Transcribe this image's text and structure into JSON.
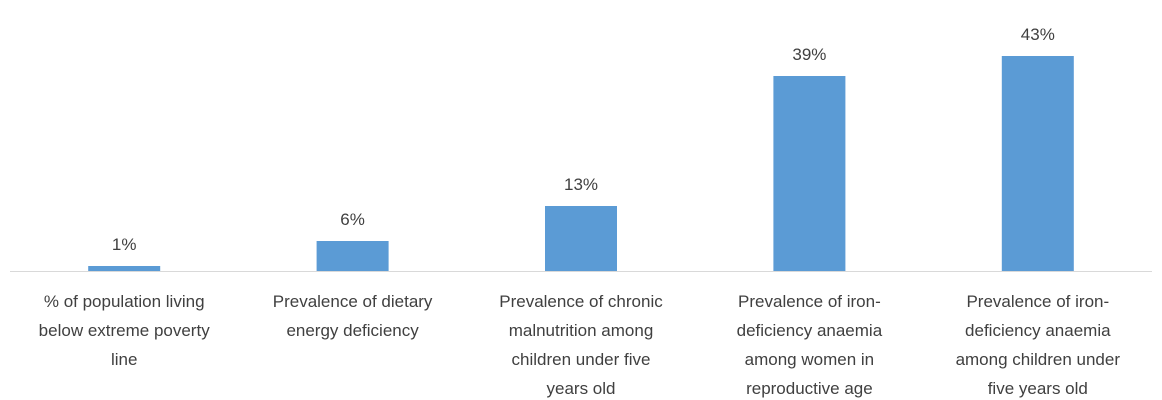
{
  "chart_data": {
    "type": "bar",
    "categories": [
      [
        "% of population living",
        "below extreme poverty",
        "line"
      ],
      [
        "Prevalence of dietary",
        "energy deficiency"
      ],
      [
        "Prevalence of chronic",
        "malnutrition among",
        "children under five",
        "years old"
      ],
      [
        "Prevalence of iron-",
        "deficiency anaemia",
        "among women in",
        "reproductive age"
      ],
      [
        "Prevalence of iron-",
        "deficiency anaemia",
        "among children under",
        "five years old"
      ]
    ],
    "values": [
      1,
      6,
      13,
      39,
      43
    ],
    "data_labels": [
      "1%",
      "6%",
      "13%",
      "39%",
      "43%"
    ],
    "unit": "%",
    "ylim": [
      0,
      45
    ],
    "grid": false,
    "legend": "none",
    "bar_color": "#5B9BD5",
    "axis_color": "#D9D9D9"
  }
}
